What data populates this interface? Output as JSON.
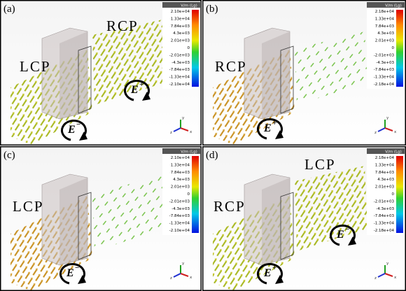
{
  "panels": [
    {
      "label": "(a)",
      "texts": [
        "LCP",
        "RCP"
      ],
      "circular": [
        {
          "symbol": "E",
          "sign": "−"
        },
        {
          "symbol": "E",
          "sign": "+"
        }
      ],
      "colorbar": {
        "unit": "V/m (Lg)",
        "ticks": [
          "2.10e+04",
          "1.33e+04",
          "7.84e+03",
          "4.3e+03",
          "2.01e+03",
          "0",
          "-2.01e+03",
          "-4.3e+03",
          "-7.84e+03",
          "-1.33e+04",
          "-2.10e+04"
        ]
      }
    },
    {
      "label": "(b)",
      "texts": [
        "RCP"
      ],
      "circular": [
        {
          "symbol": "E",
          "sign": "+"
        }
      ],
      "colorbar": {
        "unit": "V/m (Lg)",
        "ticks": [
          "2.18e+04",
          "1.33e+04",
          "7.84e+03",
          "4.3e+03",
          "2.01e+03",
          "0",
          "-2.01e+03",
          "-4.3e+03",
          "-7.84e+03",
          "-1.33e+04",
          "-2.18e+04"
        ]
      }
    },
    {
      "label": "(c)",
      "texts": [
        "LCP"
      ],
      "circular": [
        {
          "symbol": "E",
          "sign": "−"
        }
      ],
      "colorbar": {
        "unit": "V/m (Lg)",
        "ticks": [
          "2.10e+04",
          "1.33e+04",
          "7.84e+03",
          "4.3e+03",
          "2.01e+03",
          "0",
          "-2.01e+03",
          "-4.3e+03",
          "-7.84e+03",
          "-1.33e+04",
          "-2.10e+04"
        ]
      }
    },
    {
      "label": "(d)",
      "texts": [
        "RCP",
        "LCP"
      ],
      "circular": [
        {
          "symbol": "E",
          "sign": "+"
        },
        {
          "symbol": "E",
          "sign": "−"
        }
      ],
      "colorbar": {
        "unit": "V/m (Lg)",
        "ticks": [
          "2.18e+04",
          "1.33e+04",
          "7.84e+03",
          "4.3e+03",
          "2.01e+03",
          "0",
          "-2.01e+03",
          "-4.3e+03",
          "-7.84e+03",
          "-1.33e+04",
          "-2.18e+04"
        ]
      }
    }
  ],
  "triad_labels": [
    "y",
    "x",
    "z"
  ]
}
